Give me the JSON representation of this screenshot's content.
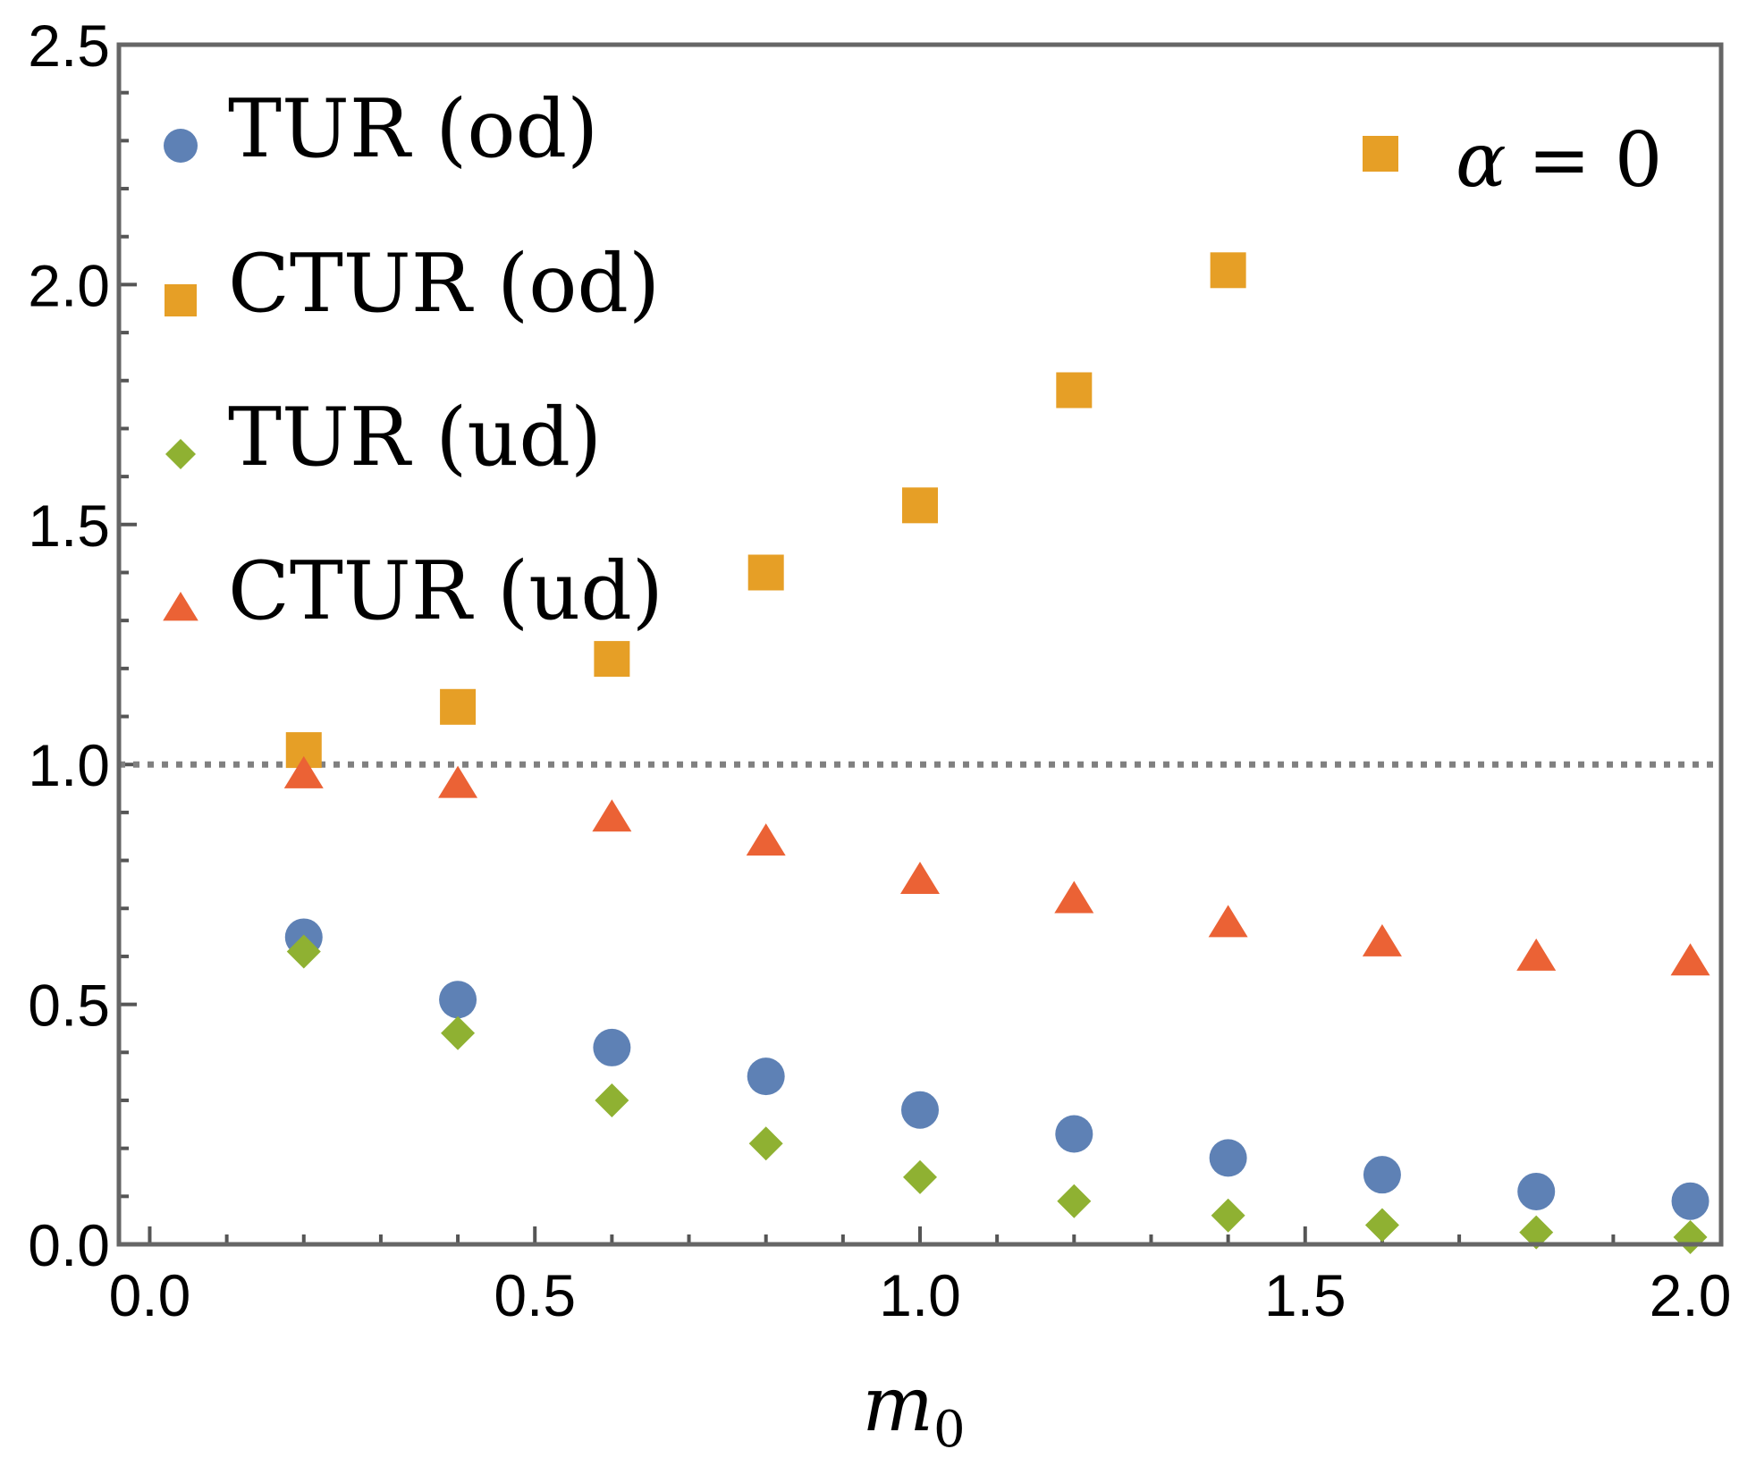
{
  "chart_data": {
    "type": "scatter",
    "xlabel": "m",
    "xlabel_subscript": "0",
    "ylabel": "",
    "xlim": [
      -0.04,
      2.04
    ],
    "ylim": [
      0,
      2.5
    ],
    "x_ticks": [
      "0.0",
      "0.5",
      "1.0",
      "1.5",
      "2.0"
    ],
    "y_ticks": [
      "0.0",
      "0.5",
      "1.0",
      "1.5",
      "2.0",
      "2.5"
    ],
    "reference_line": {
      "y": 1.0,
      "style": "dotted",
      "color": "#808080"
    },
    "annotation": {
      "symbol": "square",
      "color": "#E69F26",
      "text_main": "α",
      "text_rest": "= 0"
    },
    "legend_position": "top-left",
    "series": [
      {
        "name": "TUR (od)",
        "marker": "circle",
        "color": "#5E81B5",
        "x": [
          0.2,
          0.4,
          0.6,
          0.8,
          1.0,
          1.2,
          1.4,
          1.6,
          1.8,
          2.0
        ],
        "y": [
          0.64,
          0.51,
          0.41,
          0.35,
          0.28,
          0.23,
          0.18,
          0.145,
          0.11,
          0.09
        ]
      },
      {
        "name": "CTUR (od)",
        "marker": "square",
        "color": "#E69F26",
        "x": [
          0.2,
          0.4,
          0.6,
          0.8,
          1.0,
          1.2,
          1.4
        ],
        "y": [
          1.03,
          1.12,
          1.22,
          1.4,
          1.54,
          1.78,
          2.03
        ]
      },
      {
        "name": "TUR (ud)",
        "marker": "diamond",
        "color": "#8FB132",
        "x": [
          0.2,
          0.4,
          0.6,
          0.8,
          1.0,
          1.2,
          1.4,
          1.6,
          1.8,
          2.0
        ],
        "y": [
          0.61,
          0.44,
          0.3,
          0.21,
          0.14,
          0.09,
          0.06,
          0.04,
          0.025,
          0.015
        ]
      },
      {
        "name": "CTUR (ud)",
        "marker": "triangle",
        "color": "#EB6235",
        "x": [
          0.2,
          0.4,
          0.6,
          0.8,
          1.0,
          1.2,
          1.4,
          1.6,
          1.8,
          2.0
        ],
        "y": [
          0.98,
          0.96,
          0.89,
          0.84,
          0.76,
          0.72,
          0.67,
          0.63,
          0.6,
          0.59
        ]
      }
    ]
  }
}
